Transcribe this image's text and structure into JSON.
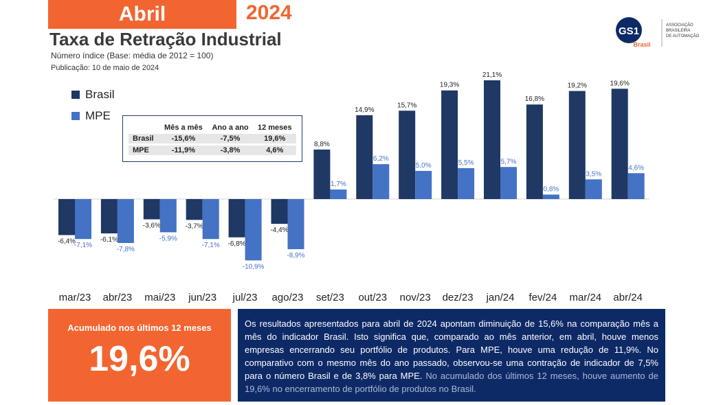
{
  "header": {
    "month": "Abril",
    "year": "2024",
    "title": "Taxa de Retração Industrial",
    "subtitle": "Número índice (Base: média de 2012 = 100)",
    "publication": "Publicação: 10 de maio de 2024"
  },
  "logo": {
    "mark": "GS1",
    "country": "Brasil",
    "org_line1": "ASSOCIAÇÃO",
    "org_line2": "BRASILEIRA",
    "org_line3": "DE AUTOMAÇÃO"
  },
  "summary_table": {
    "headers": [
      "Mês a mês",
      "Ano a ano",
      "12 meses"
    ],
    "rows": [
      {
        "label": "Brasil",
        "values": [
          "-15,6%",
          "-7,5%",
          "19,6%"
        ]
      },
      {
        "label": "MPE",
        "values": [
          "-11,9%",
          "-3,8%",
          "4,6%"
        ]
      }
    ]
  },
  "colors": {
    "brasil": "#1f3864",
    "mpe": "#4472c4",
    "orange": "#f26531",
    "navy": "#0e2a66"
  },
  "chart_data": {
    "type": "bar",
    "categories": [
      "mar/23",
      "abr/23",
      "mai/23",
      "jun/23",
      "jul/23",
      "ago/23",
      "set/23",
      "out/23",
      "nov/23",
      "dez/23",
      "jan/24",
      "fev/24",
      "mar/24",
      "abr/24"
    ],
    "series": [
      {
        "name": "Brasil",
        "values": [
          -6.4,
          -6.1,
          -3.6,
          -3.7,
          -6.8,
          -4.4,
          8.8,
          14.9,
          15.7,
          19.3,
          21.1,
          16.8,
          19.2,
          19.6
        ],
        "labels": [
          "-6,4%",
          "-6,1%",
          "-3,6%",
          "-3,7%",
          "-6,8%",
          "-4,4%",
          "8,8%",
          "14,9%",
          "15,7%",
          "19,3%",
          "21,1%",
          "16,8%",
          "19,2%",
          "19,6%"
        ]
      },
      {
        "name": "MPE",
        "values": [
          -7.1,
          -7.8,
          -5.9,
          -7.1,
          -10.9,
          -8.9,
          1.7,
          6.2,
          5.0,
          5.5,
          5.7,
          0.8,
          3.5,
          4.6
        ],
        "labels": [
          "-7,1%",
          "-7,8%",
          "-5,9%",
          "-7,1%",
          "-10,9%",
          "-8,9%",
          "1,7%",
          "6,2%",
          "5,0%",
          "5,5%",
          "5,7%",
          "0,8%",
          "3,5%",
          "4,6%"
        ]
      }
    ],
    "legend_position": "top-left",
    "grid": false
  },
  "accumulated": {
    "label": "Acumulado nos últimos 12 meses",
    "value": "19,6%"
  },
  "description": {
    "main": "Os resultados apresentados para abril de 2024 apontam diminuição de 15,6% na comparação mês a mês do indicador Brasil. Isto significa que, comparado ao mês anterior, em abril, houve menos empresas encerrando seu portfólio de produtos. Para MPE, houve uma redução de 11,9%. No comparativo com o mesmo mês do ano passado, observou-se uma contração de indicador de 7,5% para o número Brasil e de 3,8% para MPE.",
    "muted": "No acumulado dos últimos 12 meses, houve aumento de 19,6% no encerramento de portfólio de produtos no Brasil."
  }
}
